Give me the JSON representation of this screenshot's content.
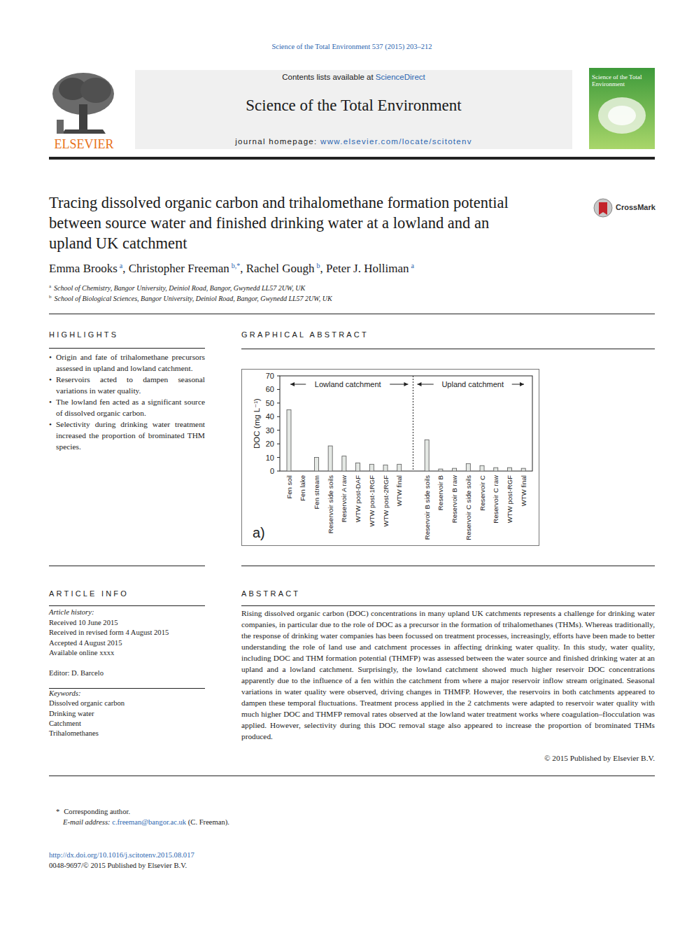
{
  "header": {
    "citation": "Science of the Total Environment 537 (2015) 203–212",
    "contents_prefix": "Contents lists available at",
    "contents_link": "ScienceDirect",
    "journal": "Science of the Total Environment",
    "homepage_prefix": "journal homepage:",
    "homepage_link": "www.elsevier.com/locate/scitotenv",
    "publisher": "ELSEVIER",
    "cover_title": "Science of the Total Environment",
    "crossmark": "CrossMark"
  },
  "title_lines": [
    "Tracing dissolved organic carbon and trihalomethane formation potential",
    "between source water and finished drinking water at a lowland and an",
    "upland UK catchment"
  ],
  "authors": [
    {
      "name": "Emma Brooks",
      "affil": "a"
    },
    {
      "name": "Christopher Freeman",
      "affil": "b,*"
    },
    {
      "name": "Rachel Gough",
      "affil": "b"
    },
    {
      "name": "Peter J. Holliman",
      "affil": "a"
    }
  ],
  "affiliations": [
    {
      "mark": "a",
      "text": "School of Chemistry, Bangor University, Deiniol Road, Bangor, Gwynedd LL57 2UW, UK"
    },
    {
      "mark": "b",
      "text": "School of Biological Sciences, Bangor University, Deiniol Road, Bangor, Gwynedd LL57 2UW, UK"
    }
  ],
  "highlights": {
    "heading": "HIGHLIGHTS",
    "items": [
      "Origin and fate of trihalomethane precursors assessed in upland and lowland catchment.",
      "Reservoirs acted to dampen seasonal variations in water quality.",
      "The lowland fen acted as a significant source of dissolved organic carbon.",
      "Selectivity during drinking water treatment increased the proportion of brominated THM species."
    ]
  },
  "graphical_abstract": {
    "heading": "GRAPHICAL ABSTRACT"
  },
  "chart_data": {
    "type": "bar",
    "y_label": "DOC (mg L⁻¹)",
    "annotations": [
      "Lowland catchment",
      "Upland catchment",
      "a)"
    ],
    "categories": [
      "Fen soil",
      "Fen lake",
      "Fen stream",
      "Reservoir side soils",
      "Reservoir A raw",
      "WTW post-DAF",
      "WTW post-1RGF",
      "WTW post-2RGF",
      "WTW final",
      null,
      "Reservoir B side soils",
      "Reservoir B",
      "Reservoir B raw",
      "Reservoir C side soils",
      "Reservoir C",
      "Reservoir C raw",
      "WTW post-RGF",
      "WTW final"
    ],
    "values": [
      45,
      null,
      10,
      18.5,
      11,
      6,
      5,
      4.5,
      5,
      null,
      23,
      1.5,
      2,
      5.5,
      4,
      2.5,
      2.5,
      2
    ],
    "color": "#e4e8e4",
    "ylim": [
      0,
      70
    ],
    "yticks": [
      0,
      10,
      20,
      30,
      40,
      50,
      60,
      70
    ],
    "grid": false
  },
  "article_info": {
    "heading": "ARTICLE INFO",
    "history_label": "Article history:",
    "history": [
      "Received 10 June 2015",
      "Received in revised form 4 August 2015",
      "Accepted 4 August 2015",
      "Available online xxxx"
    ],
    "editor": "Editor: D. Barcelo",
    "keywords_label": "Keywords:",
    "keywords": [
      "Dissolved organic carbon",
      "Drinking water",
      "Catchment",
      "Trihalomethanes"
    ]
  },
  "abstract": {
    "heading": "ABSTRACT",
    "text": "Rising dissolved organic carbon (DOC) concentrations in many upland UK catchments represents a challenge for drinking water companies, in particular due to the role of DOC as a precursor in the formation of trihalomethanes (THMs). Whereas traditionally, the response of drinking water companies has been focussed on treatment processes, increasingly, efforts have been made to better understanding the role of land use and catchment processes in affecting drinking water quality. In this study, water quality, including DOC and THM formation potential (THMFP) was assessed between the water source and finished drinking water at an upland and a lowland catchment. Surprisingly, the lowland catchment showed much higher reservoir DOC concentrations apparently due to the influence of a fen within the catchment from where a major reservoir inflow stream originated. Seasonal variations in water quality were observed, driving changes in THMFP. However, the reservoirs in both catchments appeared to dampen these temporal fluctuations. Treatment process applied in the 2 catchments were adapted to reservoir water quality with much higher DOC and THMFP removal rates observed at the lowland water treatment works where coagulation–flocculation was applied. However, selectivity during this DOC removal stage also appeared to increase the proportion of brominated THMs produced.",
    "copyright": "© 2015 Published by Elsevier B.V."
  },
  "footnotes": {
    "mark": "*",
    "corresponding": "Corresponding author.",
    "email_label": "E-mail address:",
    "email": "c.freeman@bangor.ac.uk",
    "email_suffix": "(C. Freeman)."
  },
  "footer": {
    "doi": "http://dx.doi.org/10.1016/j.scitotenv.2015.08.017",
    "issn": "0048-9697/© 2015 Published by Elsevier B.V."
  }
}
